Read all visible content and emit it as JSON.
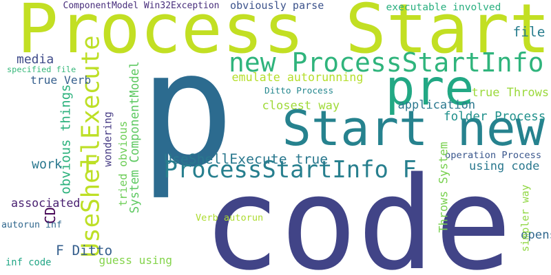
{
  "words": [
    {
      "text": "p",
      "color": "#2c6b8f"
    },
    {
      "text": "code",
      "color": "#414487"
    },
    {
      "text": "Process Start",
      "color": "#c2df23"
    },
    {
      "text": "Start new",
      "color": "#26828e"
    },
    {
      "text": "pre",
      "color": "#22a884"
    },
    {
      "text": "new ProcessStartInfo",
      "color": "#2fb47c"
    },
    {
      "text": "ProcessStartInfo F",
      "color": "#277f8e"
    },
    {
      "text": "UseShellExecute",
      "color": "#bddf26"
    },
    {
      "text": "F",
      "color": "#bddf26"
    },
    {
      "text": "UseShellExecute true",
      "color": "#2a788e"
    },
    {
      "text": "ComponentModel Win32Exception",
      "color": "#472d7b"
    },
    {
      "text": "obviously parse",
      "color": "#3b528b"
    },
    {
      "text": "executable involved",
      "color": "#29af7f"
    },
    {
      "text": "file",
      "color": "#287d8e"
    },
    {
      "text": "media",
      "color": "#3e4a89"
    },
    {
      "text": "specified file",
      "color": "#35b779"
    },
    {
      "text": "true Verb",
      "color": "#355f8d"
    },
    {
      "text": "emulate autorunning",
      "color": "#b5de2b"
    },
    {
      "text": "Ditto Process",
      "color": "#24878e"
    },
    {
      "text": "true Throws",
      "color": "#9bd93c"
    },
    {
      "text": "closest way",
      "color": "#a0da39"
    },
    {
      "text": "application",
      "color": "#2a788e"
    },
    {
      "text": "folder Process",
      "color": "#21918c"
    },
    {
      "text": "obvious things",
      "color": "#2db27d"
    },
    {
      "text": "wondering",
      "color": "#443983"
    },
    {
      "text": "tried obvious",
      "color": "#6ece58"
    },
    {
      "text": "System ComponentModel",
      "color": "#5ec962"
    },
    {
      "text": "work",
      "color": "#2a788e"
    },
    {
      "text": "using code",
      "color": "#2a788e"
    },
    {
      "text": "operation Process",
      "color": "#39568c"
    },
    {
      "text": "Throws System",
      "color": "#7ad151"
    },
    {
      "text": "associated",
      "color": "#481f70"
    },
    {
      "text": "CD",
      "color": "#440154"
    },
    {
      "text": "autorun inf",
      "color": "#31688e"
    },
    {
      "text": "Verb autorun",
      "color": "#addc30"
    },
    {
      "text": "F Ditto",
      "color": "#355f8d"
    },
    {
      "text": "opens",
      "color": "#31688e"
    },
    {
      "text": "simpler way",
      "color": "#90d743"
    },
    {
      "text": "inf code",
      "color": "#21a685"
    },
    {
      "text": "guess using",
      "color": "#84d44b"
    }
  ]
}
